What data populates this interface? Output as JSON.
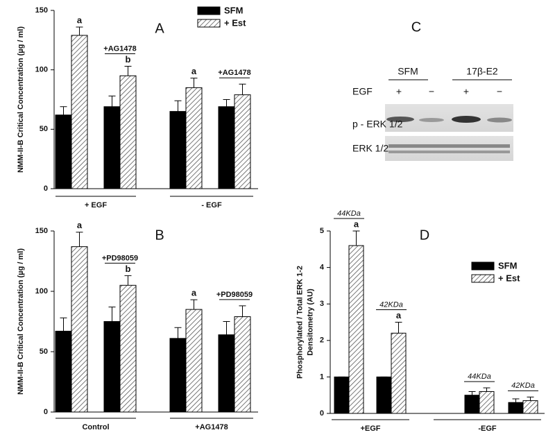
{
  "chart_data": [
    {
      "type": "bar",
      "panel": "A",
      "y_label": [
        "NMM-II-B  Critical Concentration (µg / ml)"
      ],
      "categories": [
        null,
        null,
        null,
        null
      ],
      "x_groups": [
        "+ EGF",
        "- EGF"
      ],
      "series": [
        {
          "name": "SFM",
          "color": "#000000",
          "values": [
            62,
            69,
            65,
            69
          ],
          "errors": [
            7,
            9,
            9,
            6
          ]
        },
        {
          "name": "+ Est",
          "color": "#ffffff",
          "hatch": true,
          "values": [
            129,
            95,
            85,
            79
          ],
          "errors": [
            7,
            8,
            8,
            9
          ],
          "letters": [
            "a",
            "b",
            "a",
            null
          ]
        }
      ],
      "pair_labels": [
        null,
        "+AG1478",
        null,
        "+AG1478"
      ],
      "ylim": [
        0,
        150
      ],
      "yticks": [
        0,
        50,
        100,
        150
      ],
      "legend": "top-right"
    },
    {
      "type": "bar",
      "panel": "B",
      "y_label": [
        "NMM-II-B  Critical Concentration (µg / ml)"
      ],
      "categories": [
        null,
        null,
        null,
        null
      ],
      "x_groups": [
        "Control",
        "+AG1478"
      ],
      "series": [
        {
          "color": "#000000",
          "values": [
            67,
            75,
            61,
            64
          ],
          "errors": [
            11,
            12,
            9,
            11
          ]
        },
        {
          "color": "#ffffff",
          "hatch": true,
          "values": [
            137,
            105,
            85,
            79
          ],
          "errors": [
            12,
            8,
            8,
            9
          ],
          "letters": [
            "a",
            "b",
            "a",
            null
          ]
        }
      ],
      "pair_labels": [
        null,
        "+PD98059",
        null,
        "+PD98059"
      ],
      "ylim": [
        0,
        150
      ],
      "yticks": [
        0,
        50,
        100,
        150
      ]
    },
    {
      "type": "bar",
      "panel": "D",
      "y_label": [
        "Phosphorylated  /  Total  ERK  1-2",
        "Densitometry  (AU)"
      ],
      "categories": [
        null,
        null,
        null,
        null
      ],
      "x_groups": [
        "+EGF",
        "-EGF"
      ],
      "series": [
        {
          "name": "SFM",
          "color": "#000000",
          "values": [
            1,
            1,
            0.5,
            0.3
          ],
          "errors": [
            0,
            0,
            0.1,
            0.1
          ]
        },
        {
          "name": "+ Est",
          "color": "#ffffff",
          "hatch": true,
          "values": [
            4.6,
            2.2,
            0.6,
            0.35
          ],
          "errors": [
            0.4,
            0.3,
            0.1,
            0.1
          ],
          "letters": [
            "a",
            "a",
            null,
            null
          ]
        }
      ],
      "pair_labels": [
        "44KDa",
        "42KDa",
        "44KDa",
        "42KDa"
      ],
      "ylim": [
        0,
        5
      ],
      "yticks": [
        0,
        1,
        2,
        3,
        4,
        5
      ],
      "legend": "right"
    }
  ],
  "blot": {
    "panel": "C",
    "groups": [
      "SFM",
      "17β-E2"
    ],
    "row_header": "EGF",
    "lanes": [
      "+",
      "−",
      "+",
      "−"
    ],
    "rows": [
      "p - ERK 1/2",
      "ERK 1/2"
    ]
  }
}
